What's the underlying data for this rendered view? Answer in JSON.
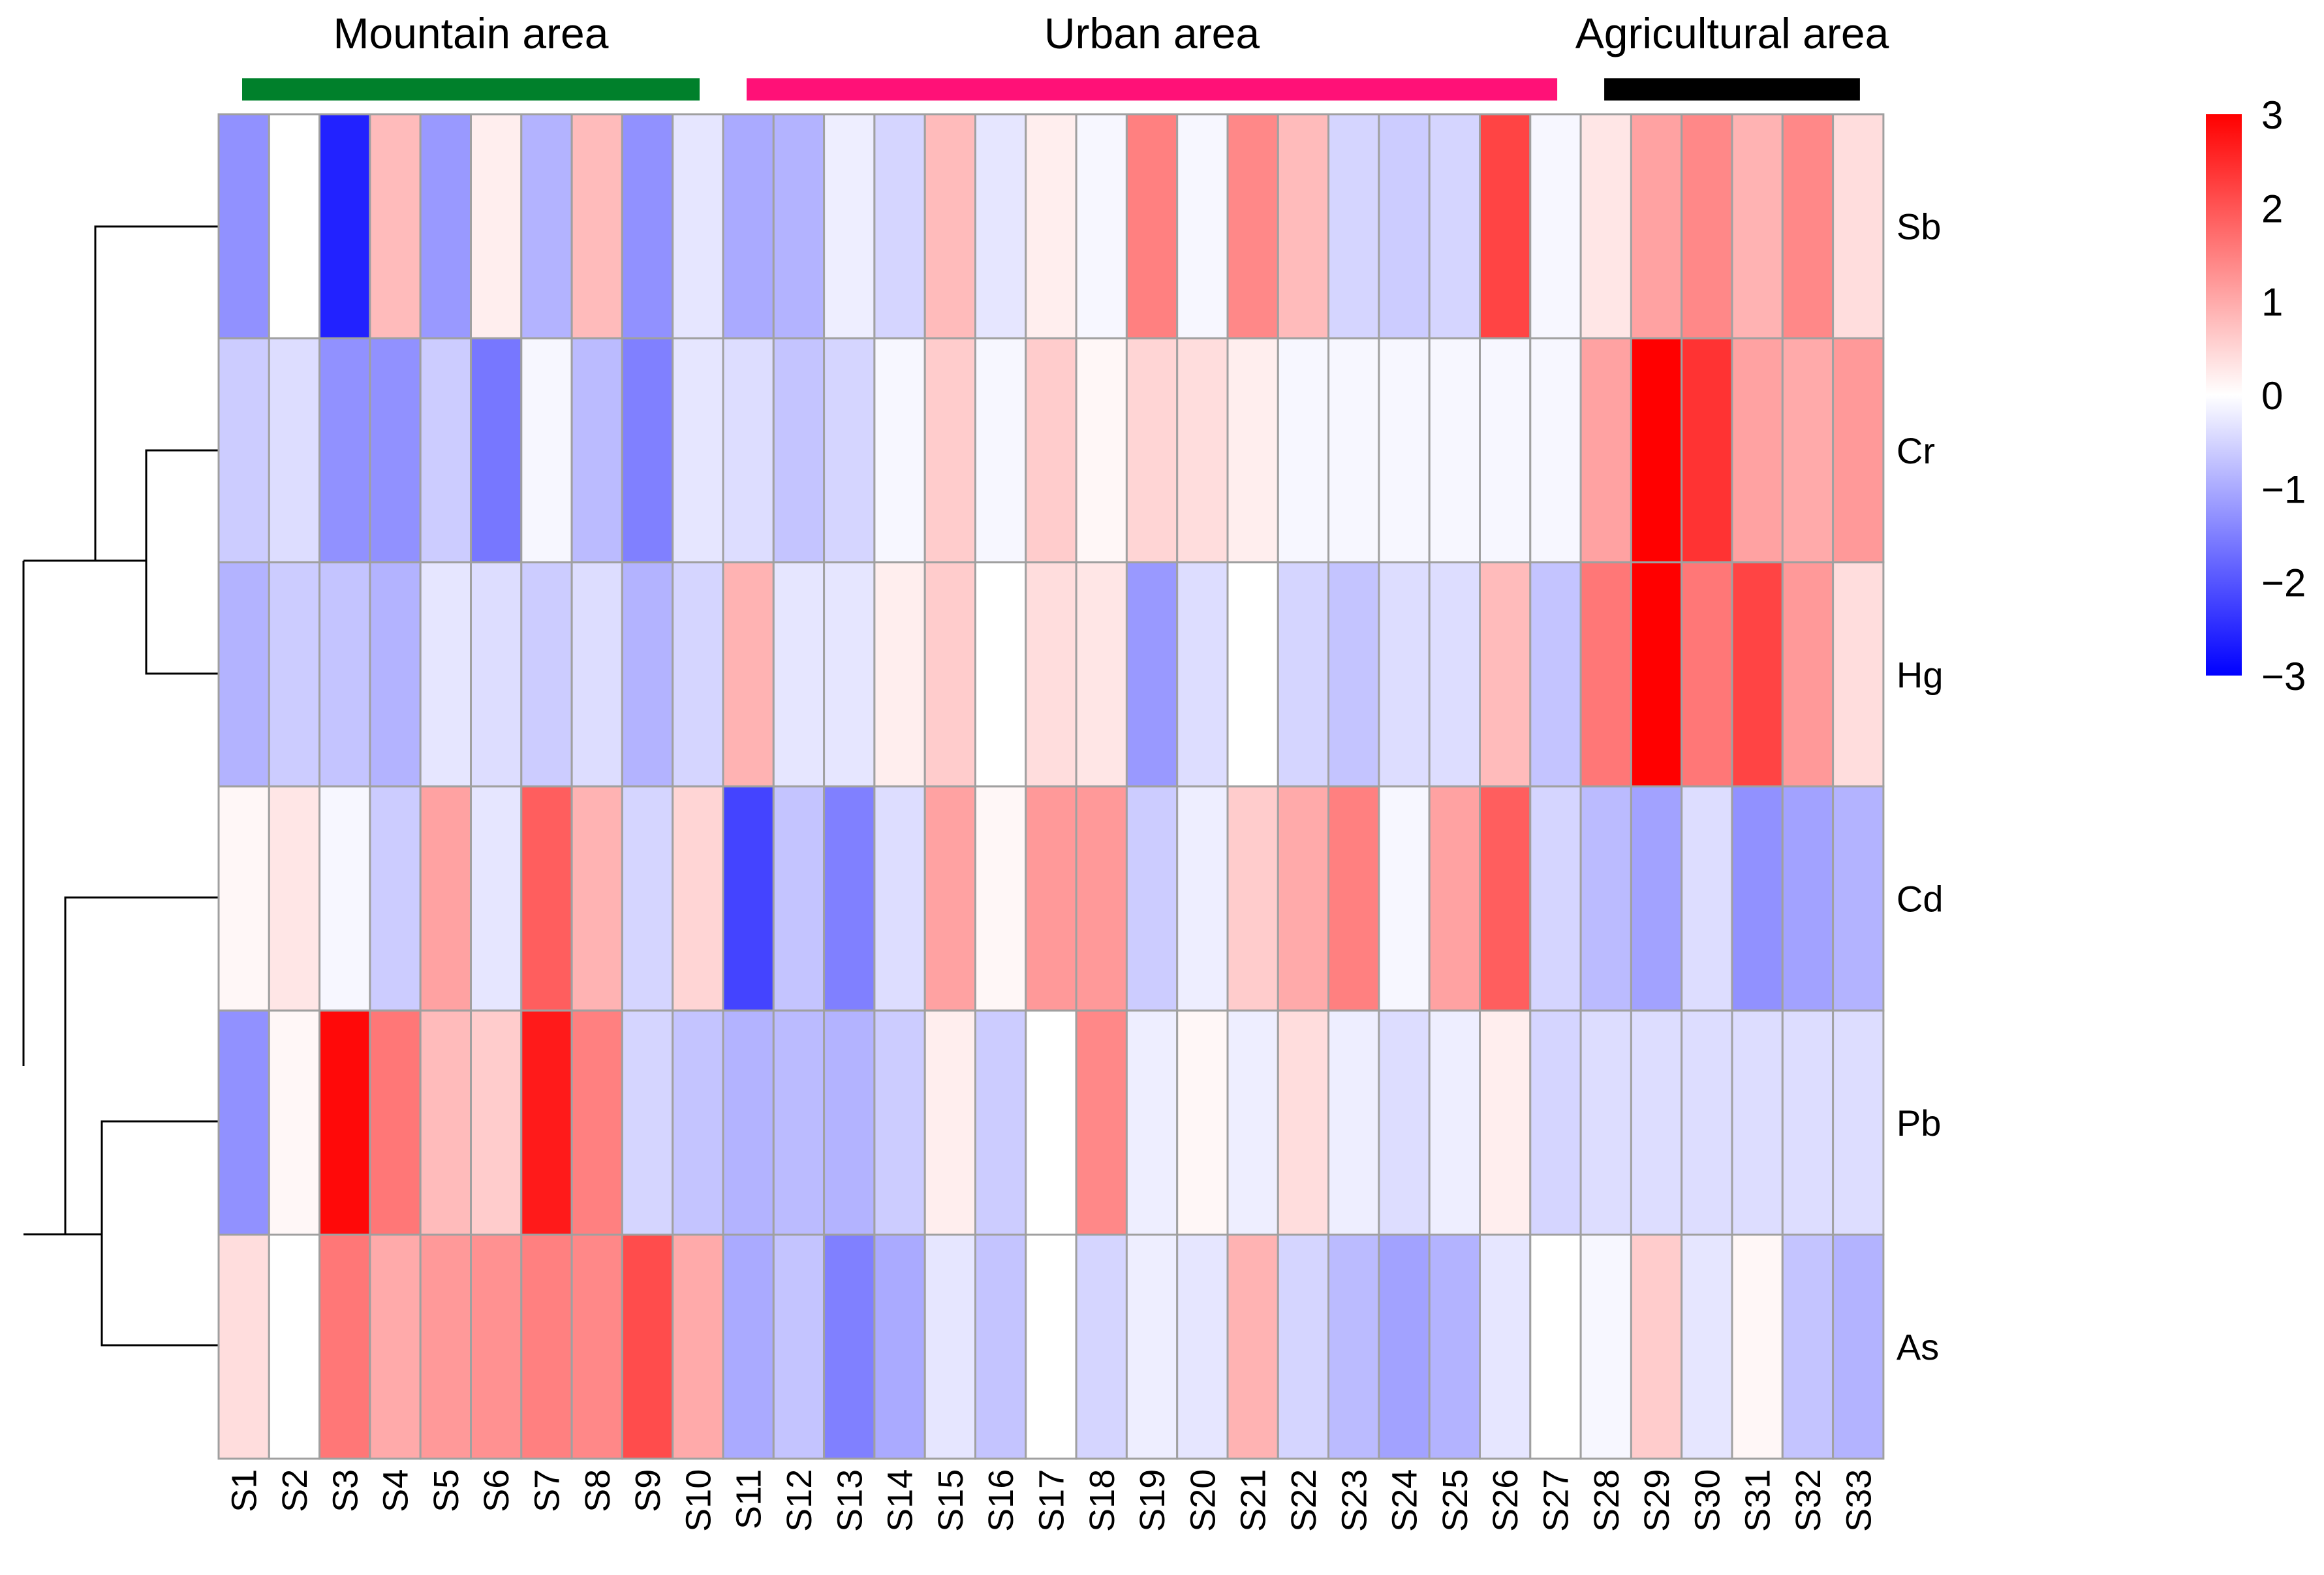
{
  "chart_data": {
    "type": "heatmap",
    "columns": [
      "S1",
      "S2",
      "S3",
      "S4",
      "S5",
      "S6",
      "S7",
      "S8",
      "S9",
      "S10",
      "S11",
      "S12",
      "S13",
      "S14",
      "S15",
      "S16",
      "S17",
      "S18",
      "S19",
      "S20",
      "S21",
      "S22",
      "S23",
      "S24",
      "S25",
      "S26",
      "S27",
      "S28",
      "S29",
      "S30",
      "S31",
      "S32",
      "S33"
    ],
    "rows": [
      "Sb",
      "Cr",
      "Hg",
      "Cd",
      "Pb",
      "As"
    ],
    "values": [
      [
        -1.3,
        0.0,
        -2.6,
        0.8,
        -1.2,
        0.2,
        -0.9,
        0.8,
        -1.3,
        -0.3,
        -1.0,
        -0.9,
        -0.2,
        -0.5,
        0.8,
        -0.3,
        0.2,
        -0.1,
        1.5,
        -0.1,
        1.4,
        0.8,
        -0.5,
        -0.6,
        -0.5,
        2.2,
        -0.1,
        0.3,
        1.1,
        1.4,
        0.9,
        1.4,
        0.4
      ],
      [
        -0.6,
        -0.4,
        -1.3,
        -1.3,
        -0.6,
        -1.6,
        -0.1,
        -0.8,
        -1.5,
        -0.3,
        -0.4,
        -0.7,
        -0.5,
        -0.1,
        0.6,
        -0.1,
        0.6,
        0.1,
        0.5,
        0.4,
        0.2,
        -0.1,
        -0.1,
        -0.1,
        -0.1,
        -0.1,
        -0.1,
        1.1,
        3.2,
        2.4,
        1.1,
        1.0,
        1.2
      ],
      [
        -0.9,
        -0.6,
        -0.7,
        -0.9,
        -0.3,
        -0.4,
        -0.6,
        -0.4,
        -0.9,
        -0.5,
        0.9,
        -0.3,
        -0.3,
        0.2,
        0.6,
        0.0,
        0.4,
        0.3,
        -1.2,
        -0.4,
        0.0,
        -0.5,
        -0.7,
        -0.4,
        -0.4,
        0.8,
        -0.7,
        1.6,
        3.1,
        1.6,
        2.2,
        1.2,
        0.4
      ],
      [
        0.1,
        0.3,
        -0.1,
        -0.6,
        1.1,
        -0.3,
        1.9,
        0.9,
        -0.5,
        0.5,
        -2.2,
        -0.7,
        -1.5,
        -0.4,
        1.1,
        0.1,
        1.2,
        1.2,
        -0.6,
        -0.2,
        0.6,
        1.0,
        1.5,
        -0.1,
        1.1,
        1.9,
        -0.5,
        -0.8,
        -1.1,
        -0.4,
        -1.3,
        -1.1,
        -0.9
      ],
      [
        -1.3,
        0.1,
        2.9,
        1.6,
        0.8,
        0.6,
        2.7,
        1.5,
        -0.5,
        -0.7,
        -0.9,
        -0.8,
        -0.9,
        -0.6,
        0.2,
        -0.6,
        0.0,
        1.4,
        -0.2,
        0.1,
        -0.2,
        0.4,
        -0.2,
        -0.4,
        -0.2,
        0.2,
        -0.5,
        -0.4,
        -0.4,
        -0.4,
        -0.4,
        -0.4,
        -0.4
      ],
      [
        0.4,
        0.0,
        1.6,
        1.0,
        1.2,
        1.3,
        1.5,
        1.4,
        2.1,
        1.0,
        -1.0,
        -0.7,
        -1.5,
        -1.0,
        -0.3,
        -0.7,
        0.0,
        -0.5,
        -0.2,
        -0.3,
        0.9,
        -0.5,
        -0.8,
        -1.1,
        -0.9,
        -0.3,
        0.0,
        -0.1,
        0.6,
        -0.3,
        0.1,
        -0.7,
        -0.9
      ]
    ],
    "groups": [
      {
        "label": "Mountain area",
        "start": 1,
        "end": 10,
        "color": "#00802b"
      },
      {
        "label": "Urban area",
        "start": 11,
        "end": 27,
        "color": "#ff1177"
      },
      {
        "label": "Agricultural area",
        "start": 28,
        "end": 33,
        "color": "#000000"
      }
    ],
    "colorscale": {
      "min": -3,
      "max": 3,
      "low": "#0000ff",
      "mid": "#ffffff",
      "high": "#ff0000"
    },
    "legend_ticks": [
      "3",
      "2",
      "1",
      "0",
      "−1",
      "−2",
      "−3"
    ],
    "row_dendrogram": "((Sb,(Cr,Hg)),(Cd,(Pb,As)))"
  }
}
